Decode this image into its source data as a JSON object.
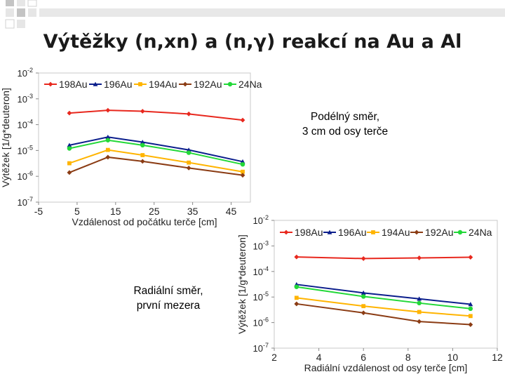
{
  "slide": {
    "title": "Výtěžky (n,xn) a (n,γ) reakcí  na Au a Al"
  },
  "notes": {
    "top_line1": "Podélný směr,",
    "top_line2": "3 cm od osy terče",
    "bottom_line1": "Radiální směr,",
    "bottom_line2": "první mezera"
  },
  "colors": {
    "198Au": "#e8281e",
    "196Au": "#0b1e8c",
    "194Au": "#ffb400",
    "192Au": "#8b3c14",
    "24Na": "#22d838",
    "decor_dark": "#c4c4c4",
    "decor_light": "#e8e8e8"
  },
  "chart_data": [
    {
      "type": "line",
      "yscale": "log",
      "xlabel": "Vzdálenost od počátku terče [cm]",
      "ylabel": "Výtěžek [1/g*deuteron]",
      "xlim": [
        -5,
        50
      ],
      "xticks": [
        "-5",
        "5",
        "15",
        "25",
        "35",
        "45"
      ],
      "ylim_exp": [
        -7,
        -2
      ],
      "ytick_exponents": [
        "-2",
        "-3",
        "-4",
        "-5",
        "-6",
        "-7"
      ],
      "legend_position": "top-left",
      "series": [
        {
          "name": "198Au",
          "marker": "diamond",
          "x": [
            3,
            13,
            22,
            34,
            48
          ],
          "values": [
            0.00028,
            0.00036,
            0.00033,
            0.00026,
            0.00015
          ]
        },
        {
          "name": "196Au",
          "marker": "triangle",
          "x": [
            3,
            13,
            22,
            34,
            48
          ],
          "values": [
            1.6e-05,
            3.3e-05,
            2.1e-05,
            1.05e-05,
            3.7e-06
          ]
        },
        {
          "name": "194Au",
          "marker": "square",
          "x": [
            3,
            13,
            22,
            34,
            48
          ],
          "values": [
            3.2e-06,
            1.05e-05,
            6.6e-06,
            3.4e-06,
            1.5e-06
          ]
        },
        {
          "name": "192Au",
          "marker": "diamond",
          "x": [
            3,
            13,
            22,
            34,
            48
          ],
          "values": [
            1.4e-06,
            5.5e-06,
            3.8e-06,
            2.1e-06,
            1.1e-06
          ]
        },
        {
          "name": "24Na",
          "marker": "circle",
          "x": [
            3,
            13,
            22,
            34,
            48
          ],
          "values": [
            1.2e-05,
            2.5e-05,
            1.6e-05,
            8.2e-06,
            2.9e-06
          ]
        }
      ]
    },
    {
      "type": "line",
      "yscale": "log",
      "xlabel": "Radiální vzdálenost od osy terče [cm]",
      "ylabel": "Výtěžek [1/g*deuteron]",
      "xlim": [
        2,
        12
      ],
      "xticks": [
        "2",
        "4",
        "6",
        "8",
        "10",
        "12"
      ],
      "ylim_exp": [
        -7,
        -2
      ],
      "ytick_exponents": [
        "-2",
        "-3",
        "-4",
        "-5",
        "-6",
        "-7"
      ],
      "legend_position": "top-left",
      "series": [
        {
          "name": "198Au",
          "marker": "diamond",
          "x": [
            3,
            6,
            8.5,
            10.8
          ],
          "values": [
            0.00037,
            0.00032,
            0.00034,
            0.00036
          ]
        },
        {
          "name": "196Au",
          "marker": "triangle",
          "x": [
            3,
            6,
            8.5,
            10.8
          ],
          "values": [
            3.1e-05,
            1.45e-05,
            8.5e-06,
            5.2e-06
          ]
        },
        {
          "name": "194Au",
          "marker": "square",
          "x": [
            3,
            6,
            8.5,
            10.8
          ],
          "values": [
            9.3e-06,
            4.4e-06,
            2.6e-06,
            1.8e-06
          ]
        },
        {
          "name": "192Au",
          "marker": "diamond",
          "x": [
            3,
            6,
            8.5,
            10.8
          ],
          "values": [
            5.4e-06,
            2.4e-06,
            1.1e-06,
            8.3e-07
          ]
        },
        {
          "name": "24Na",
          "marker": "circle",
          "x": [
            3,
            6,
            8.5,
            10.8
          ],
          "values": [
            2.5e-05,
            1.05e-05,
            5.8e-06,
            3.5e-06
          ]
        }
      ]
    }
  ]
}
